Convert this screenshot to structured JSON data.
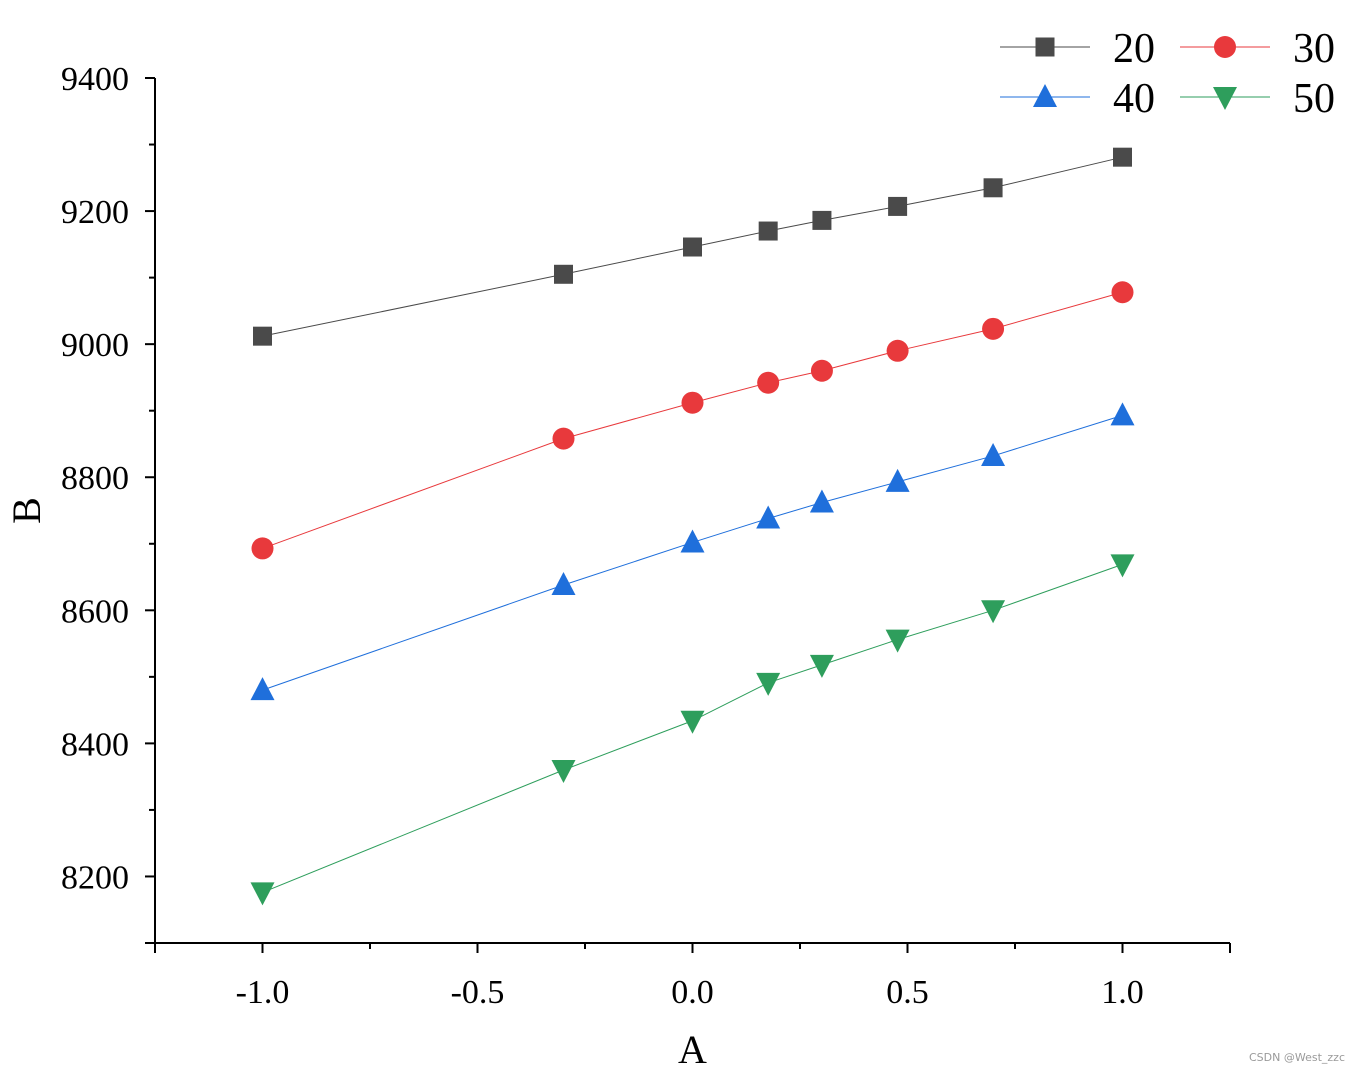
{
  "chart_data": {
    "type": "line",
    "title": "",
    "xlabel": "A",
    "ylabel": "B",
    "xlim": [
      -1.25,
      1.25
    ],
    "ylim": [
      8100,
      9400
    ],
    "xticks": [
      -1.0,
      -0.5,
      0.0,
      0.5,
      1.0
    ],
    "xtick_labels": [
      "-1.0",
      "-0.5",
      "0.0",
      "0.5",
      "1.0"
    ],
    "yticks": [
      8200,
      8400,
      8600,
      8800,
      9000,
      9200,
      9400
    ],
    "ytick_labels": [
      "8200",
      "8400",
      "8600",
      "8800",
      "9000",
      "9200",
      "9400"
    ],
    "x": [
      -1.0,
      -0.3,
      0.0,
      0.176,
      0.301,
      0.477,
      0.699,
      1.0
    ],
    "legend_position": "top-right",
    "grid": false,
    "series": [
      {
        "name": "20",
        "color": "#4a4a4a",
        "marker": "square",
        "values": [
          9012,
          9105,
          9146,
          9170,
          9186,
          9207,
          9235,
          9281
        ]
      },
      {
        "name": "30",
        "color": "#e8393c",
        "marker": "circle",
        "values": [
          8693,
          8858,
          8912,
          8942,
          8960,
          8990,
          9023,
          9078
        ]
      },
      {
        "name": "40",
        "color": "#1f6fdb",
        "marker": "triangle-up",
        "values": [
          8480,
          8638,
          8702,
          8738,
          8762,
          8793,
          8832,
          8893
        ]
      },
      {
        "name": "50",
        "color": "#2e9e5c",
        "marker": "triangle-down",
        "values": [
          8176,
          8360,
          8434,
          8491,
          8518,
          8556,
          8600,
          8669
        ]
      }
    ]
  },
  "watermark": "CSDN @West_zzc"
}
